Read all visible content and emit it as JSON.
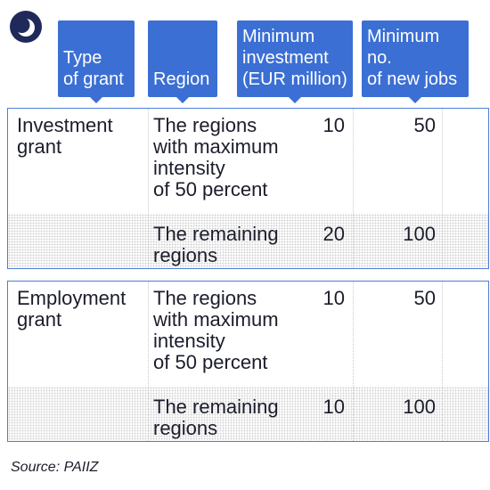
{
  "brand": {
    "logo_icon": "crescent-moon-logo-icon",
    "logo_color": "#1f2a5a"
  },
  "colors": {
    "header_bg": "#3b6fd4",
    "header_text": "#ffffff",
    "group_border": "#4b7fd8"
  },
  "headers": [
    [
      "Type",
      "of grant"
    ],
    [
      "Region"
    ],
    [
      "Minimum",
      "investment",
      "(EUR million)"
    ],
    [
      "Minimum no.",
      "of new jobs"
    ]
  ],
  "groups": [
    {
      "type": [
        "Investment",
        "grant"
      ],
      "rows": [
        {
          "region": [
            "The regions",
            "with maximum",
            "intensity",
            "of 50 percent"
          ],
          "investment": "10",
          "jobs": "50"
        },
        {
          "region": [
            "The remaining",
            "regions"
          ],
          "investment": "20",
          "jobs": "100"
        }
      ]
    },
    {
      "type": [
        "Employment",
        "grant"
      ],
      "rows": [
        {
          "region": [
            "The regions",
            "with maximum",
            "intensity",
            "of 50 percent"
          ],
          "investment": "10",
          "jobs": "50"
        },
        {
          "region": [
            "The remaining",
            "regions"
          ],
          "investment": "10",
          "jobs": "100"
        }
      ]
    }
  ],
  "source": "Source: PAIIZ"
}
